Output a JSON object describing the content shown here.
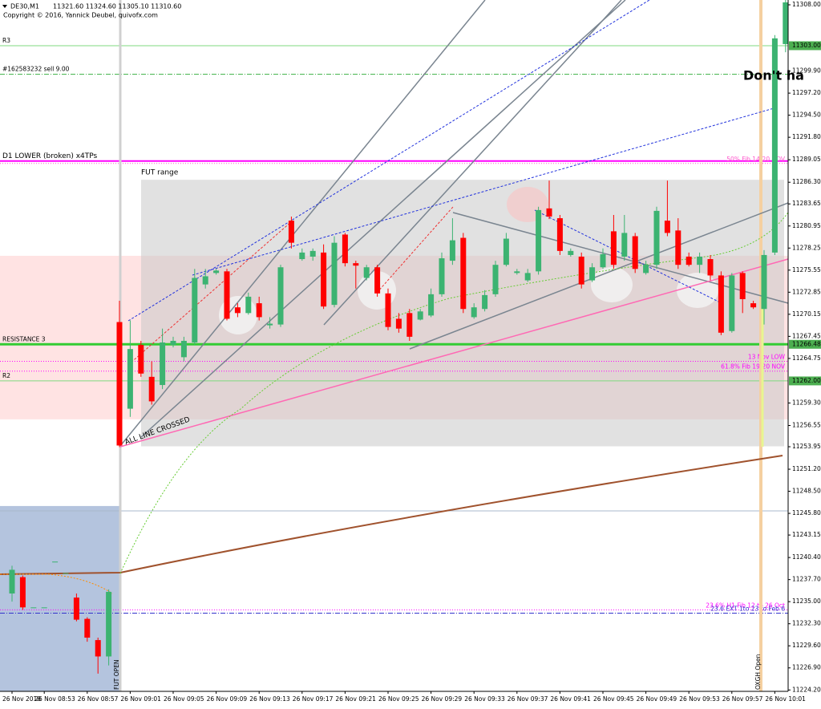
{
  "header": {
    "symbol": "DE30,M1",
    "ohlc": "11321.60 11324.60 11305.10 11310.60",
    "copyright": "Copyright © 2016, Yannick Deubel, quivofx.com"
  },
  "annotations": {
    "warning": "Don't ha",
    "fut_open": "FUT OPEN",
    "oxgh_open": "OXGH Open",
    "crossed": "ALL LINE CROSSED"
  },
  "chart_data": {
    "type": "candlestick",
    "categories": [
      "26 Nov 2018",
      null,
      null,
      "26 Nov 08:53",
      null,
      null,
      null,
      "26 Nov 08:57",
      null,
      null,
      null,
      "26 Nov 09:01",
      null,
      null,
      null,
      "26 Nov 09:05",
      null,
      null,
      null,
      "26 Nov 09:09",
      null,
      null,
      null,
      "26 Nov 09:13",
      null,
      null,
      null,
      "26 Nov 09:17",
      null,
      null,
      null,
      "26 Nov 09:21",
      null,
      null,
      null,
      "26 Nov 09:25",
      null,
      null,
      null,
      "26 Nov 09:29",
      null,
      null,
      null,
      "26 Nov 09:33",
      null,
      null,
      null,
      "26 Nov 09:37",
      null,
      null,
      null,
      "26 Nov 09:41",
      null,
      null,
      null,
      "26 Nov 09:45",
      null,
      null,
      null,
      "26 Nov 09:49",
      null,
      null,
      null,
      "26 Nov 09:53",
      null,
      null,
      null,
      "26 Nov 09:57",
      null,
      null,
      null,
      "26 Nov 10:01",
      null
    ],
    "open": [
      11236.0,
      11238.0,
      11234.3,
      11234.3,
      11239.9,
      11238.5,
      11235.5,
      11232.9,
      11230.3,
      11228.3,
      11269.2,
      11258.6,
      11266.4,
      11262.5,
      11261.5,
      11266.4,
      11264.9,
      11266.7,
      11273.8,
      11275.2,
      11275.4,
      11271.0,
      11270.3,
      11271.5,
      11268.8,
      11268.9,
      11281.6,
      11276.9,
      11277.2,
      11277.7,
      11271.3,
      11279.9,
      11276.4,
      11274.6,
      11275.9,
      11272.7,
      11269.6,
      11270.3,
      11269.5,
      11270.0,
      11272.6,
      11276.7,
      11279.5,
      11269.8,
      11270.8,
      11272.6,
      11276.2,
      11275.2,
      11274.3,
      11275.4,
      11283.1,
      11281.9,
      11277.4,
      11277.2,
      11274.3,
      11275.9,
      11280.3,
      11277.2,
      11279.7,
      11275.2,
      11276.2,
      11281.6,
      11280.4,
      11277.2,
      11276.2,
      11276.9,
      11274.9,
      11268.1,
      11275.2,
      11271.5,
      11270.8,
      11277.7,
      11303.2
    ],
    "high": [
      11239.4,
      11238.2,
      11234.3,
      11234.3,
      11239.9,
      11238.5,
      11236.0,
      11233.1,
      11230.6,
      11236.5,
      11271.8,
      11269.4,
      11266.9,
      11264.4,
      11268.4,
      11267.4,
      11267.4,
      11275.7,
      11275.7,
      11275.7,
      11275.7,
      11271.5,
      11272.8,
      11272.3,
      11269.8,
      11276.2,
      11282.1,
      11278.2,
      11278.2,
      11278.7,
      11279.7,
      11280.1,
      11276.7,
      11276.2,
      11276.2,
      11273.3,
      11270.3,
      11270.8,
      11270.8,
      11273.3,
      11277.7,
      11281.9,
      11280.1,
      11271.5,
      11273.1,
      11276.7,
      11280.1,
      11275.7,
      11275.7,
      11283.3,
      11286.5,
      11282.3,
      11278.2,
      11277.7,
      11276.4,
      11278.2,
      11282.3,
      11282.3,
      11280.1,
      11276.7,
      11283.3,
      11286.5,
      11281.9,
      11277.7,
      11277.7,
      11277.4,
      11275.4,
      11275.2,
      11275.4,
      11271.8,
      11278.0,
      11304.3,
      11308.6
    ],
    "low": [
      11235.0,
      11234.0,
      11234.3,
      11234.3,
      11239.9,
      11238.5,
      11232.6,
      11230.1,
      11226.2,
      11227.2,
      11253.9,
      11257.6,
      11262.5,
      11259.1,
      11261.0,
      11266.1,
      11264.4,
      11266.4,
      11273.3,
      11275.0,
      11269.4,
      11269.8,
      11270.1,
      11269.4,
      11268.4,
      11268.6,
      11278.2,
      11276.7,
      11276.7,
      11270.8,
      11271.0,
      11276.0,
      11273.3,
      11274.3,
      11272.3,
      11268.2,
      11267.9,
      11266.9,
      11269.4,
      11269.8,
      11272.3,
      11276.2,
      11270.3,
      11269.6,
      11270.5,
      11272.3,
      11276.0,
      11275.0,
      11274.1,
      11275.0,
      11281.8,
      11277.4,
      11277.2,
      11273.3,
      11274.1,
      11275.7,
      11275.7,
      11276.7,
      11275.2,
      11275.0,
      11275.7,
      11279.7,
      11275.7,
      11276.0,
      11275.2,
      11274.3,
      11267.6,
      11267.9,
      11270.3,
      11270.8,
      11268.9,
      11277.4,
      11302.2
    ],
    "close": [
      11238.9,
      11234.3,
      11234.3,
      11234.3,
      11239.9,
      11238.5,
      11232.8,
      11230.6,
      11228.3,
      11236.2,
      11254.1,
      11265.9,
      11262.9,
      11259.5,
      11266.7,
      11266.9,
      11266.9,
      11274.6,
      11274.8,
      11275.5,
      11269.6,
      11270.3,
      11272.3,
      11269.8,
      11269.0,
      11275.9,
      11278.9,
      11277.7,
      11277.9,
      11271.1,
      11278.9,
      11276.4,
      11276.1,
      11275.9,
      11272.7,
      11268.6,
      11268.4,
      11267.4,
      11270.5,
      11272.6,
      11277.0,
      11279.2,
      11270.8,
      11271.0,
      11272.5,
      11276.2,
      11279.4,
      11275.4,
      11275.2,
      11282.9,
      11282.1,
      11277.9,
      11277.9,
      11273.8,
      11275.9,
      11277.5,
      11276.2,
      11280.1,
      11275.7,
      11276.2,
      11282.8,
      11280.1,
      11276.2,
      11276.2,
      11277.2,
      11274.9,
      11267.9,
      11274.9,
      11272.0,
      11271.0,
      11277.4,
      11303.9,
      11308.3
    ],
    "up_color": "#3cb371",
    "down_color": "#ff0000",
    "ylim": [
      11224.03,
      11308.59
    ],
    "yticks": [
      {
        "value": 11308.0,
        "label": "11308.00"
      },
      {
        "value": 11299.9,
        "label": "11299.90"
      },
      {
        "value": 11297.2,
        "label": "11297.20"
      },
      {
        "value": 11294.5,
        "label": "11294.50"
      },
      {
        "value": 11291.8,
        "label": "11291.80"
      },
      {
        "value": 11289.05,
        "label": "11289.05"
      },
      {
        "value": 11286.3,
        "label": "11286.30"
      },
      {
        "value": 11283.65,
        "label": "11283.65"
      },
      {
        "value": 11280.95,
        "label": "11280.95"
      },
      {
        "value": 11278.25,
        "label": "11278.25"
      },
      {
        "value": 11275.55,
        "label": "11275.55"
      },
      {
        "value": 11272.85,
        "label": "11272.85"
      },
      {
        "value": 11270.15,
        "label": "11270.15"
      },
      {
        "value": 11267.45,
        "label": "11267.45"
      },
      {
        "value": 11264.75,
        "label": "11264.75"
      },
      {
        "value": 11259.3,
        "label": "11259.30"
      },
      {
        "value": 11256.55,
        "label": "11256.55"
      },
      {
        "value": 11253.95,
        "label": "11253.95"
      },
      {
        "value": 11251.2,
        "label": "11251.20"
      },
      {
        "value": 11248.5,
        "label": "11248.50"
      },
      {
        "value": 11245.8,
        "label": "11245.80"
      },
      {
        "value": 11243.15,
        "label": "11243.15"
      },
      {
        "value": 11240.4,
        "label": "11240.40"
      },
      {
        "value": 11237.7,
        "label": "11237.70"
      },
      {
        "value": 11235.0,
        "label": "11235.00"
      },
      {
        "value": 11232.3,
        "label": "11232.30"
      },
      {
        "value": 11229.6,
        "label": "11229.60"
      },
      {
        "value": 11226.9,
        "label": "11226.90"
      },
      {
        "value": 11224.2,
        "label": "11224.20"
      }
    ],
    "zones": [
      {
        "top": 11277.3,
        "bottom": 11257.3,
        "color": "#ffdada"
      },
      {
        "name": "FUT range",
        "top": 11286.6,
        "bottom": 11254.0,
        "color": "#c8c8c8"
      },
      {
        "top": 11246.7,
        "bottom": 11224.03,
        "color": "#b4c4de"
      }
    ],
    "levels": [
      {
        "name": "R3",
        "value": 11303.0,
        "label": "11303.00",
        "color": "#7fd97f",
        "style": "solid",
        "width": 1,
        "align": "left"
      },
      {
        "name": "#162583232 sell 9.00",
        "value": 11299.5,
        "color": "#3cb043",
        "style": "dashdot",
        "width": 1,
        "align": "left"
      },
      {
        "name": "D1 LOWER (broken) x4TPs",
        "value": 11288.9,
        "color": "#ff00ff",
        "style": "solid",
        "width": 2,
        "align": "left"
      },
      {
        "name": "50% Fib 14-20 NOV",
        "value": 11288.6,
        "color": "#ff55cc",
        "style": "dot",
        "width": 1,
        "align": "right"
      },
      {
        "name": "RESISTANCE 3",
        "value": 11266.48,
        "label": "11266.48",
        "color": "#33cc33",
        "style": "solid",
        "width": 3,
        "align": "left"
      },
      {
        "name": "13 Nov LOW",
        "value": 11264.4,
        "color": "#ff00ff",
        "style": "dot",
        "width": 1,
        "align": "right"
      },
      {
        "name": "61.8% Fib 19-20 NOV",
        "value": 11263.2,
        "color": "#ff00ff",
        "style": "dot",
        "width": 1,
        "align": "right"
      },
      {
        "name": "R2",
        "value": 11262.0,
        "label": "11262.00",
        "color": "#7fd97f",
        "style": "solid",
        "width": 1,
        "align": "left"
      },
      {
        "value": 11246.1,
        "color": "#a8b8cc",
        "style": "solid",
        "width": 1
      },
      {
        "name": "23.6% H1 Fib 12 to 26 Oct",
        "value": 11234.0,
        "color": "#ff00ff",
        "style": "dot",
        "width": 1,
        "align": "right"
      },
      {
        "name": "23.6 EXT 1to 23 to Feb 6",
        "value": 11233.6,
        "color": "#3333cc",
        "style": "dashdot",
        "width": 1,
        "align": "right"
      }
    ]
  }
}
